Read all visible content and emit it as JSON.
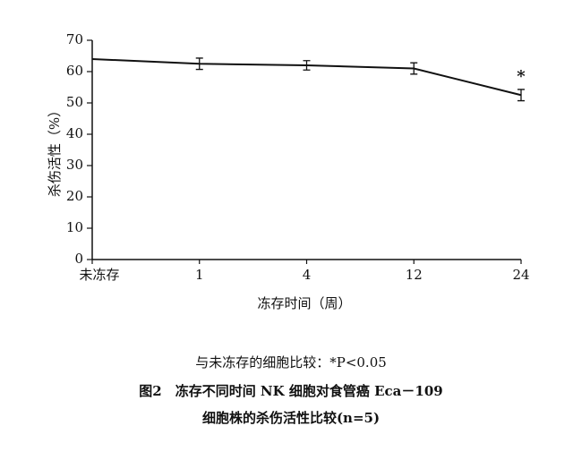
{
  "chart_data": {
    "type": "line",
    "x_label": "冻存时间（周）",
    "y_label": "杀伤活性（%）",
    "categories": [
      "未冻存",
      "1",
      "4",
      "12",
      "24"
    ],
    "series": [
      {
        "color": "#111111",
        "values": [
          64,
          62.5,
          62,
          61,
          52.5
        ],
        "errors": [
          0,
          1.8,
          1.5,
          1.8,
          1.8
        ]
      }
    ],
    "annotation": "*",
    "ylim": [
      0,
      70
    ],
    "yticks": [
      0,
      10,
      20,
      30,
      40,
      50,
      60,
      70
    ],
    "caption": [
      "与未冻存的细胞比较：*P<0.05",
      "图2　冻存不同时间 NK 细胞对食管癌 Eca－109",
      "细胞株的杀伤活性比较(n=5)"
    ]
  }
}
